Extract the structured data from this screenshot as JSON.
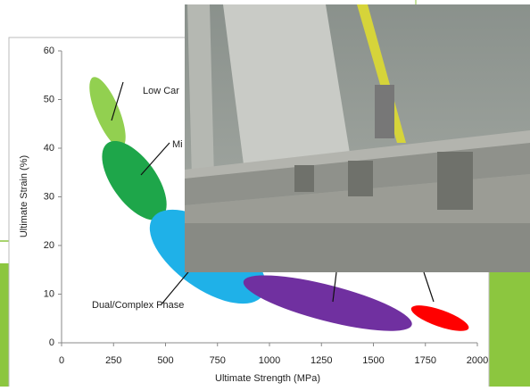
{
  "chart_data": {
    "type": "ellipse",
    "x_label": "Ultimate Strength (MPa)",
    "y_label": "Ultimate Strain (%)",
    "xlim": [
      0,
      2000
    ],
    "xticks": [
      0,
      250,
      500,
      750,
      1000,
      1250,
      1500,
      1750,
      2000
    ],
    "ylim": [
      0,
      60
    ],
    "yticks": [
      0,
      10,
      20,
      30,
      40,
      50,
      60
    ],
    "regions": [
      {
        "label": "Low Car",
        "color": "#92d050",
        "x_range": [
          146,
          296
        ],
        "y_range": [
          39.6,
          55.2
        ]
      },
      {
        "label": "Mi",
        "color": "#1ea64a",
        "x_range": [
          210,
          490
        ],
        "y_range": [
          25,
          41.7
        ]
      },
      {
        "label": "Dual/Complex Phase",
        "color": "#1fb1e8",
        "x_range": [
          416,
          990
        ],
        "y_range": [
          9,
          26.4
        ]
      },
      {
        "color": "#7030a0",
        "x_range": [
          840,
          1720
        ],
        "y_range": [
          3.3,
          13
        ]
      },
      {
        "color": "#ff0000",
        "x_range": [
          1670,
          1970
        ],
        "y_range": [
          2.8,
          7.3
        ]
      }
    ]
  }
}
